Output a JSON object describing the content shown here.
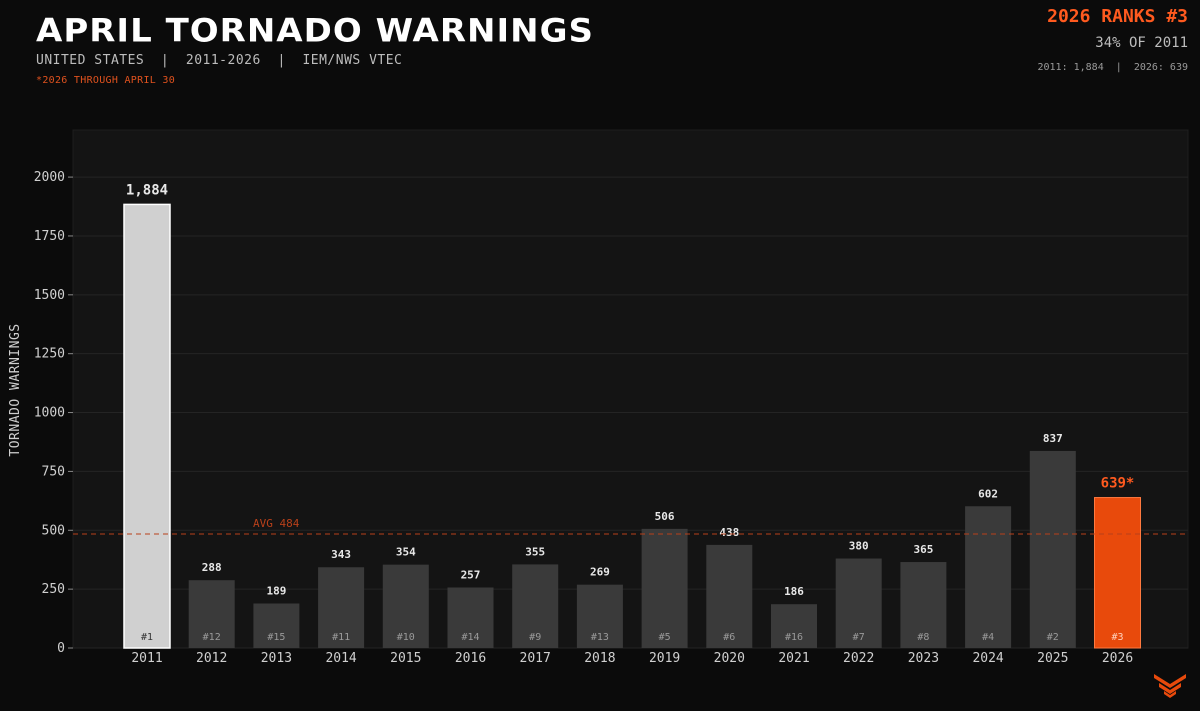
{
  "header": {
    "title": "APRIL TORNADO WARNINGS",
    "subtitle": "UNITED STATES  |  2011-2026  |  IEM/NWS VTEC",
    "note": "*2026 THROUGH APRIL 30",
    "rank_headline": "2026 RANKS #3",
    "rank_percent": "34% OF 2011",
    "rank_compare": "2011: 1,884  |  2026: 639"
  },
  "colors": {
    "background": "#0b0b0b",
    "plot_background": "#141414",
    "bar": "#3a3a3a",
    "bar_max": "#d0d0d0",
    "bar_highlight": "#e84a0c",
    "average_line": "#b8401a",
    "accent": "#ff5a1f"
  },
  "chart_data": {
    "type": "bar",
    "title": "APRIL TORNADO WARNINGS",
    "xlabel": "",
    "ylabel": "TORNADO WARNINGS",
    "ylim": [
      0,
      2200
    ],
    "yticks": [
      0,
      250,
      500,
      750,
      1000,
      1250,
      1500,
      1750,
      2000
    ],
    "grid": true,
    "categories": [
      "2011",
      "2012",
      "2013",
      "2014",
      "2015",
      "2016",
      "2017",
      "2018",
      "2019",
      "2020",
      "2021",
      "2022",
      "2023",
      "2024",
      "2025",
      "2026"
    ],
    "values": [
      1884,
      288,
      189,
      343,
      354,
      257,
      355,
      269,
      506,
      438,
      186,
      380,
      365,
      602,
      837,
      639
    ],
    "value_labels": [
      "1,884",
      "288",
      "189",
      "343",
      "354",
      "257",
      "355",
      "269",
      "506",
      "438",
      "186",
      "380",
      "365",
      "602",
      "837",
      "639*"
    ],
    "ranks": [
      "#1",
      "#12",
      "#15",
      "#11",
      "#10",
      "#14",
      "#9",
      "#13",
      "#5",
      "#6",
      "#16",
      "#7",
      "#8",
      "#4",
      "#2",
      "#3"
    ],
    "average": {
      "value": 484,
      "label": "AVG 484"
    },
    "highlight": "2026",
    "max_category": "2011"
  }
}
